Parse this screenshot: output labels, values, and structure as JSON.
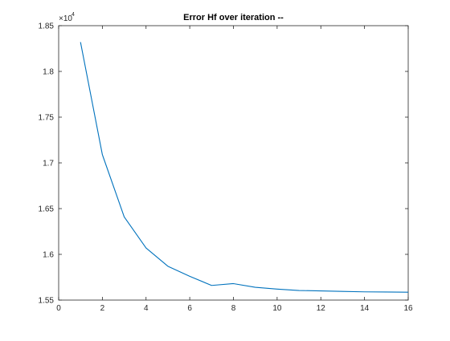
{
  "chart_data": {
    "type": "line",
    "title": "Error Hf over iteration --",
    "xlabel": "",
    "ylabel": "",
    "xlim": [
      0,
      16
    ],
    "ylim": [
      1.55,
      1.85
    ],
    "y_exponent_label": "×10",
    "y_exponent_power": "4",
    "x_ticks": [
      0,
      2,
      4,
      6,
      8,
      10,
      12,
      14,
      16
    ],
    "y_ticks": [
      1.55,
      1.6,
      1.65,
      1.7,
      1.75,
      1.8,
      1.85
    ],
    "x_tick_labels": [
      "0",
      "2",
      "4",
      "6",
      "8",
      "10",
      "12",
      "14",
      "16"
    ],
    "y_tick_labels": [
      "1.55",
      "1.6",
      "1.65",
      "1.7",
      "1.75",
      "1.8",
      "1.85"
    ],
    "grid": false,
    "series": [
      {
        "color": "#0072bd",
        "x": [
          1,
          2,
          3,
          4,
          5,
          6,
          7,
          8,
          9,
          10,
          11,
          12,
          13,
          14,
          15,
          16
        ],
        "y": [
          1.832,
          1.709,
          1.641,
          1.607,
          1.587,
          1.576,
          1.566,
          1.568,
          1.564,
          1.562,
          1.5605,
          1.56,
          1.5595,
          1.559,
          1.5588,
          1.5586
        ]
      }
    ]
  }
}
